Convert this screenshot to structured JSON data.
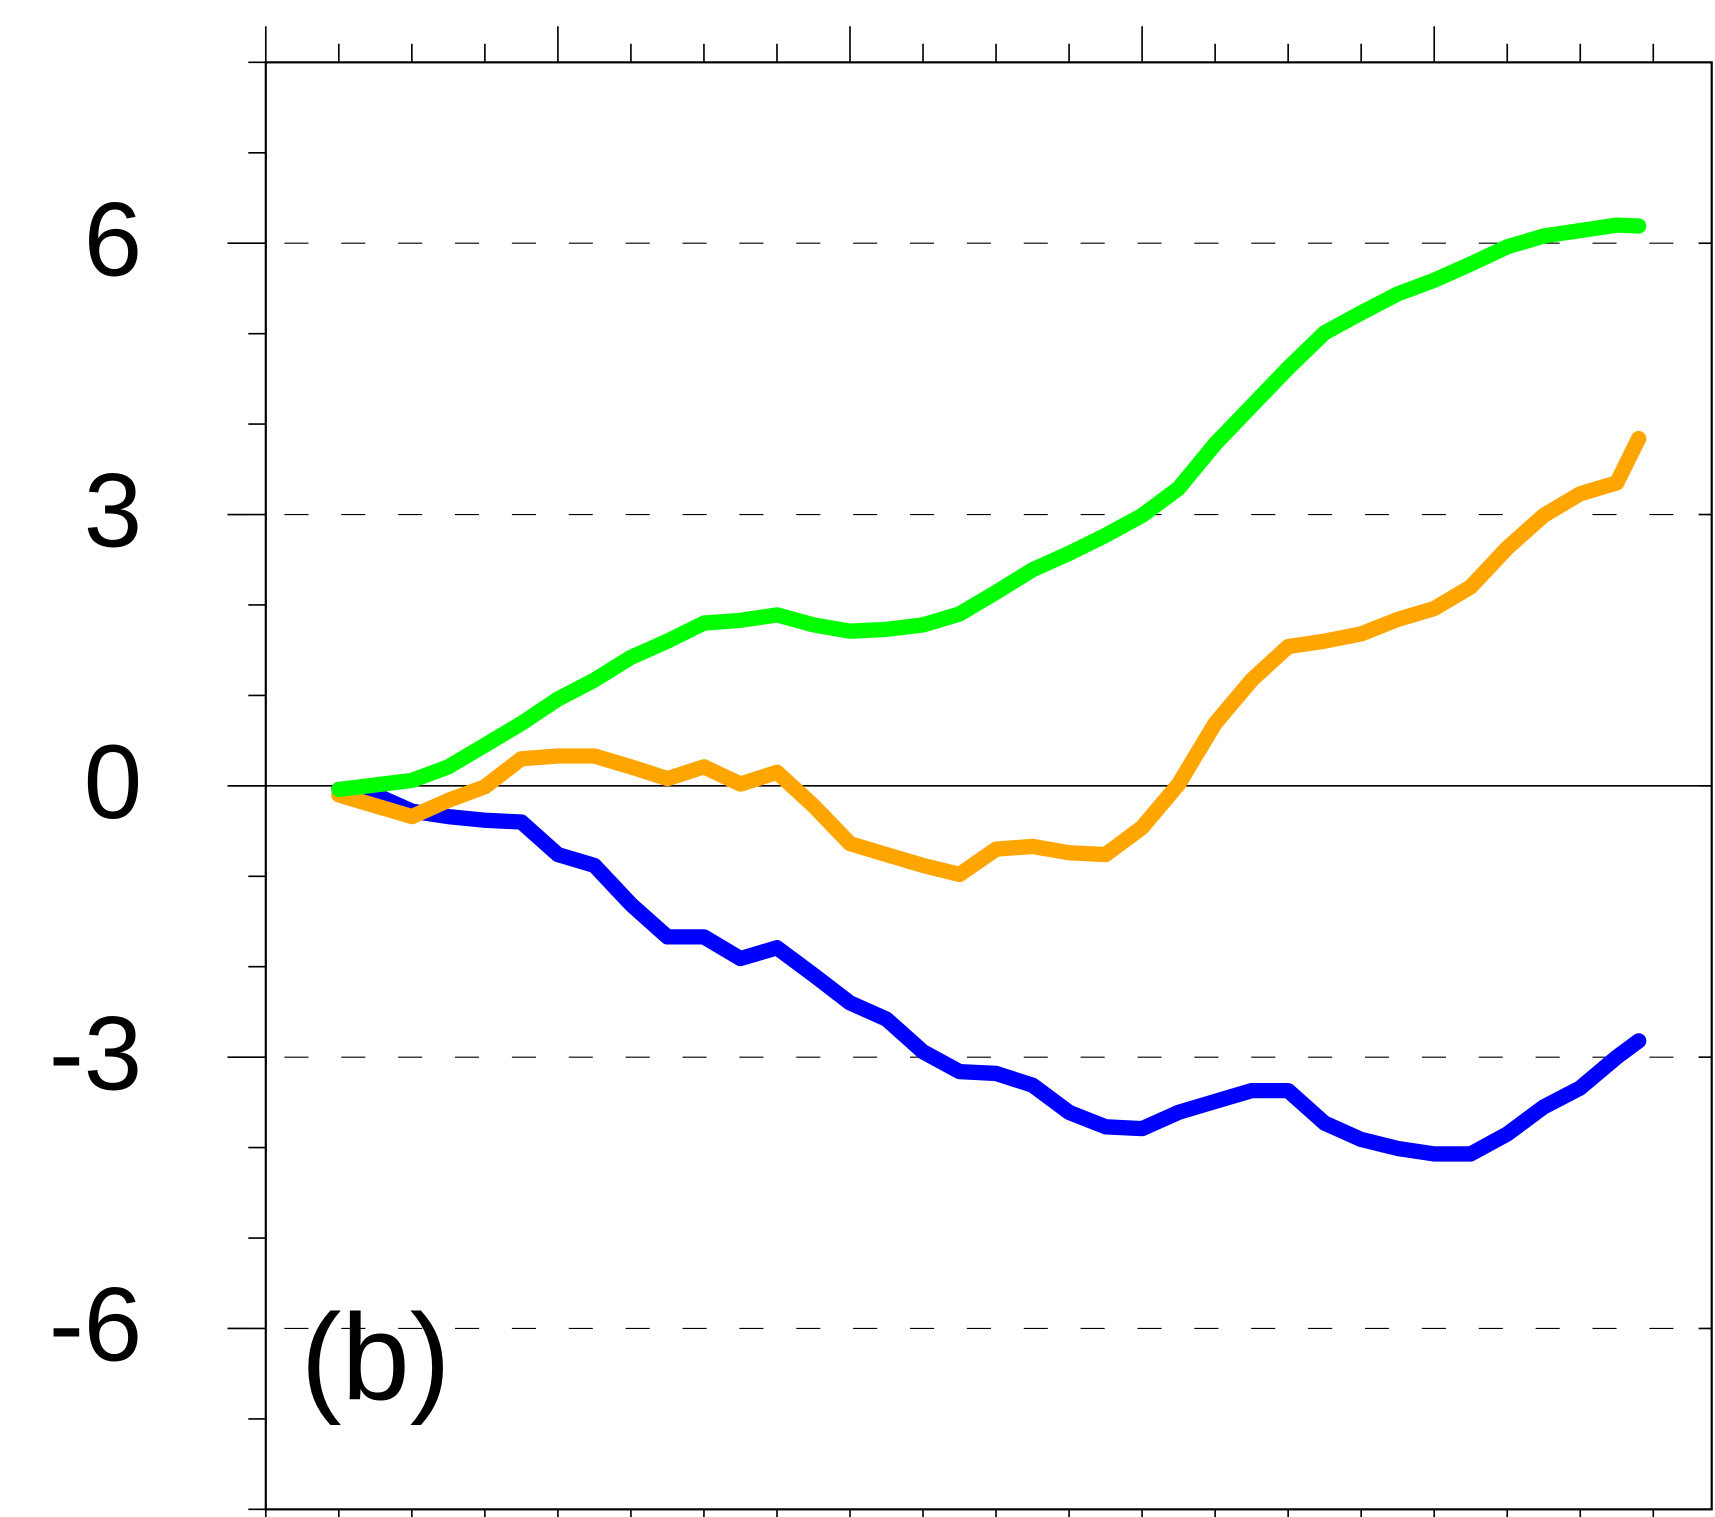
{
  "chart_data": {
    "type": "line",
    "annotation": "(b)",
    "x": [
      1,
      1.5,
      2,
      2.5,
      3,
      3.5,
      4,
      4.5,
      5,
      5.5,
      6,
      6.5,
      7,
      7.5,
      8,
      8.5,
      9,
      9.5,
      10,
      10.5,
      11,
      11.5,
      12,
      12.5,
      13,
      13.5,
      14,
      14.5,
      15,
      15.5,
      16,
      16.5,
      17,
      17.5,
      18,
      18.5,
      18.8
    ],
    "series": [
      {
        "color": "#0000ff",
        "values": [
          -0.04,
          -0.1,
          -0.28,
          -0.34,
          -0.38,
          -0.4,
          -0.76,
          -0.88,
          -1.31,
          -1.67,
          -1.67,
          -1.91,
          -1.79,
          -2.09,
          -2.4,
          -2.58,
          -2.94,
          -3.16,
          -3.18,
          -3.31,
          -3.61,
          -3.77,
          -3.79,
          -3.61,
          -3.49,
          -3.37,
          -3.37,
          -3.73,
          -3.91,
          -4.01,
          -4.07,
          -4.07,
          -3.85,
          -3.55,
          -3.34,
          -3.0,
          -2.82
        ]
      },
      {
        "color": "#ffa500",
        "values": [
          -0.1,
          -0.22,
          -0.34,
          -0.16,
          -0.01,
          0.3,
          0.33,
          0.33,
          0.21,
          0.08,
          0.21,
          0.02,
          0.15,
          -0.22,
          -0.64,
          -0.76,
          -0.88,
          -0.98,
          -0.7,
          -0.67,
          -0.74,
          -0.76,
          -0.46,
          0.02,
          0.69,
          1.17,
          1.54,
          1.6,
          1.68,
          1.84,
          1.96,
          2.2,
          2.63,
          2.99,
          3.23,
          3.35,
          3.84
        ]
      },
      {
        "color": "#00ff00",
        "values": [
          -0.04,
          0.01,
          0.06,
          0.21,
          0.45,
          0.69,
          0.96,
          1.17,
          1.42,
          1.6,
          1.8,
          1.83,
          1.89,
          1.78,
          1.71,
          1.73,
          1.78,
          1.9,
          2.14,
          2.39,
          2.57,
          2.77,
          2.99,
          3.29,
          3.78,
          4.2,
          4.62,
          5.01,
          5.23,
          5.44,
          5.59,
          5.77,
          5.96,
          6.08,
          6.14,
          6.2,
          6.19
        ]
      }
    ],
    "xlim": [
      0,
      19.8
    ],
    "xticks": [
      0,
      4,
      8,
      12,
      16
    ],
    "xminorticks": [
      1,
      2,
      3,
      5,
      6,
      7,
      9,
      10,
      11,
      13,
      14,
      15,
      17,
      18,
      19
    ],
    "ylim": [
      -8,
      8
    ],
    "yticks": [
      -6,
      -3,
      0,
      3,
      6
    ],
    "yminorticks": [
      -8,
      -7,
      -5,
      -4,
      -2,
      -1,
      1,
      2,
      4,
      5,
      7,
      8
    ],
    "grid": "dashed",
    "zero_line": true
  }
}
